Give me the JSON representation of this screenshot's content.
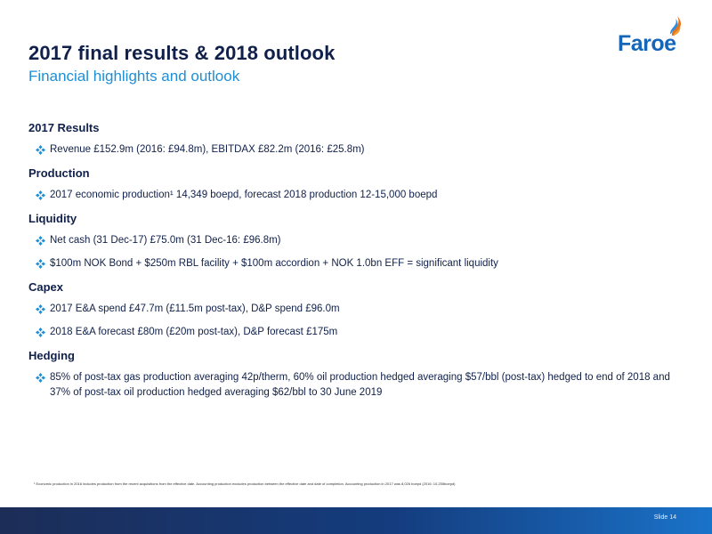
{
  "slide": {
    "title": "2017 final results & 2018 outlook",
    "subtitle": "Financial highlights and outlook",
    "logo_text": "Faroe",
    "icons": {
      "logo": "flame-logo-icon",
      "bullet": "four-diamond-bullet-icon"
    },
    "colors": {
      "title": "#10204a",
      "subtitle": "#1e8fd6",
      "bullet": "#1e8fd6",
      "logo": "#1565b8"
    },
    "sections": [
      {
        "heading": "2017 Results",
        "bullets": [
          "Revenue £152.9m (2016: £94.8m), EBITDAX £82.2m (2016: £25.8m)"
        ]
      },
      {
        "heading": "Production",
        "bullets": [
          "2017 economic production¹ 14,349 boepd, forecast 2018 production 12-15,000 boepd"
        ]
      },
      {
        "heading": "Liquidity",
        "bullets": [
          "Net cash (31 Dec-17) £75.0m (31 Dec-16: £96.8m)",
          "$100m NOK Bond + $250m RBL facility + $100m accordion + NOK 1.0bn EFF = significant liquidity"
        ]
      },
      {
        "heading": "Capex",
        "bullets": [
          "2017 E&A spend £47.7m (£11.5m post-tax), D&P spend £96.0m",
          "2018 E&A forecast £80m (£20m post-tax), D&P forecast £175m"
        ]
      },
      {
        "heading": "Hedging",
        "bullets": [
          "85% of post-tax gas production averaging 42p/therm, 60% oil production hedged averaging $57/bbl (post-tax) hedged to end of 2018 and 37% of post-tax oil production hedged averaging $62/bbl to 30 June 2019"
        ]
      }
    ],
    "footnote": "¹ Economic production in 2016 includes production from the recent acquisitions from the effective date. Accounting production excludes production between the effective date and date of completion. Accounting production in 2017 was 8,026 boepd (2016: 10,255boepd)",
    "slide_number": "Slide 14"
  }
}
